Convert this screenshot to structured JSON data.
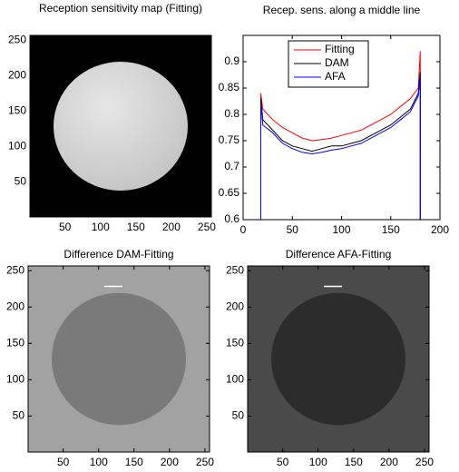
{
  "chart_data": [
    {
      "type": "image",
      "title": "Reception sensitivity map (Fitting)",
      "xlim": [
        0.5,
        256.5
      ],
      "ylim": [
        0.5,
        256.5
      ],
      "xticks": [
        50,
        100,
        150,
        200,
        250
      ],
      "yticks": [
        50,
        100,
        150,
        200,
        250
      ]
    },
    {
      "type": "line",
      "title": "Recep. sens. along a middle line",
      "xlim": [
        0,
        200
      ],
      "ylim": [
        0.6,
        0.95
      ],
      "xticks": [
        0,
        50,
        100,
        150,
        200
      ],
      "yticks": [
        0.6,
        0.65,
        0.7,
        0.75,
        0.8,
        0.85,
        0.9
      ],
      "legend": "upper center",
      "x": [
        18,
        18,
        20,
        30,
        40,
        50,
        60,
        70,
        80,
        90,
        100,
        110,
        120,
        130,
        140,
        150,
        160,
        170,
        178,
        180,
        180
      ],
      "series": [
        {
          "name": "Fitting",
          "color": "#ff0000",
          "values": [
            0.6,
            0.84,
            0.81,
            0.79,
            0.775,
            0.765,
            0.755,
            0.75,
            0.752,
            0.755,
            0.76,
            0.765,
            0.77,
            0.78,
            0.79,
            0.8,
            0.815,
            0.83,
            0.85,
            0.92,
            0.6
          ]
        },
        {
          "name": "DAM",
          "color": "#000000",
          "values": [
            0.6,
            0.83,
            0.79,
            0.77,
            0.75,
            0.74,
            0.735,
            0.73,
            0.735,
            0.74,
            0.74,
            0.745,
            0.75,
            0.76,
            0.77,
            0.78,
            0.795,
            0.81,
            0.84,
            0.88,
            0.6
          ]
        },
        {
          "name": "AFA",
          "color": "#0000ff",
          "values": [
            0.6,
            0.82,
            0.78,
            0.765,
            0.745,
            0.735,
            0.728,
            0.725,
            0.728,
            0.732,
            0.735,
            0.74,
            0.745,
            0.755,
            0.765,
            0.775,
            0.79,
            0.805,
            0.835,
            0.87,
            0.6
          ]
        }
      ]
    },
    {
      "type": "image",
      "title": "Difference DAM-Fitting",
      "xlim": [
        0.5,
        256.5
      ],
      "ylim": [
        0.5,
        256.5
      ],
      "xticks": [
        50,
        100,
        150,
        200,
        250
      ],
      "yticks": [
        50,
        100,
        150,
        200,
        250
      ]
    },
    {
      "type": "image",
      "title": "Difference AFA-Fitting",
      "xlim": [
        0.5,
        256.5
      ],
      "ylim": [
        0.5,
        256.5
      ],
      "xticks": [
        50,
        100,
        150,
        200,
        250
      ],
      "yticks": [
        50,
        100,
        150,
        200,
        250
      ]
    }
  ]
}
